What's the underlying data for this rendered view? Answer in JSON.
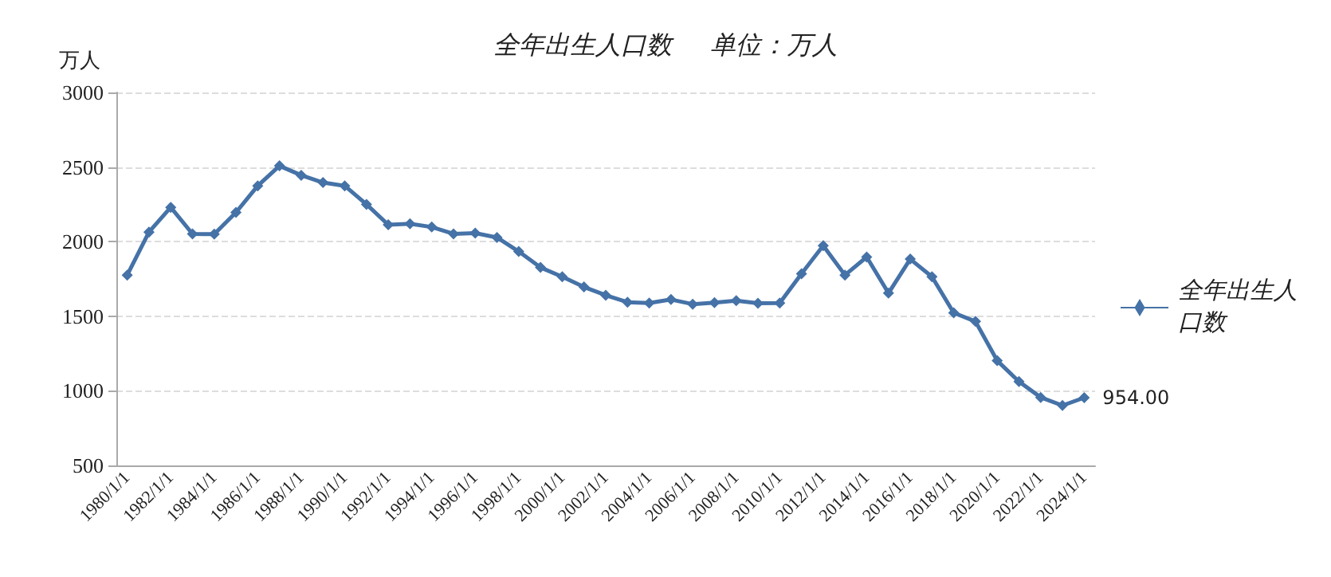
{
  "chart_data": {
    "type": "line",
    "title": "全年出生人口数      单位：万人",
    "ylabel": "万人",
    "categories": [
      "1980/1/1",
      null,
      "1982/1/1",
      null,
      "1984/1/1",
      null,
      "1986/1/1",
      null,
      "1988/1/1",
      null,
      "1990/1/1",
      null,
      "1992/1/1",
      null,
      "1994/1/1",
      null,
      "1996/1/1",
      null,
      "1998/1/1",
      null,
      "2000/1/1",
      null,
      "2002/1/1",
      null,
      "2004/1/1",
      null,
      "2006/1/1",
      null,
      "2008/1/1",
      null,
      "2010/1/1",
      null,
      "2012/1/1",
      null,
      "2014/1/1",
      null,
      "2016/1/1",
      null,
      "2018/1/1",
      null,
      "2020/1/1",
      null,
      "2022/1/1",
      null,
      "2024/1/1"
    ],
    "series": [
      {
        "name": "全年出生人口数",
        "color": "#4572a7",
        "values": [
          1776,
          2064,
          2230,
          2052,
          2050,
          2196,
          2374,
          2508,
          2445,
          2396,
          2374,
          2250,
          2113,
          2120,
          2098,
          2052,
          2057,
          2028,
          1934,
          1827,
          1765,
          1696,
          1641,
          1594,
          1588,
          1612,
          1581,
          1591,
          1604,
          1587,
          1588,
          1785,
          1973,
          1776,
          1897,
          1655,
          1883,
          1765,
          1523,
          1465,
          1202,
          1062,
          956,
          902,
          954
        ],
        "value_labels": [
          null,
          null,
          null,
          null,
          null,
          null,
          null,
          null,
          null,
          null,
          null,
          null,
          null,
          null,
          null,
          null,
          null,
          null,
          null,
          null,
          null,
          null,
          null,
          null,
          null,
          null,
          null,
          null,
          null,
          null,
          null,
          null,
          null,
          null,
          null,
          null,
          null,
          null,
          null,
          null,
          null,
          null,
          null,
          null,
          "954.00"
        ]
      }
    ],
    "ylim": [
      500,
      3000
    ],
    "yticks": [
      500,
      1000,
      1500,
      2000,
      2500,
      3000
    ],
    "grid": "y",
    "legend": "right",
    "marker": "diamond",
    "line_style": "solid"
  }
}
